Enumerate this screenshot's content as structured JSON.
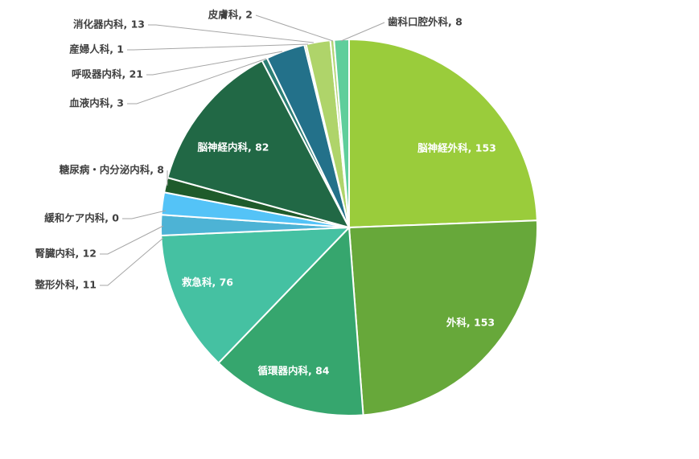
{
  "chart_data": {
    "type": "pie",
    "categories": [
      "脳神経外科",
      "外科",
      "循環器内科",
      "救急科",
      "整形外科",
      "腎臓内科",
      "緩和ケア内科",
      "糖尿病・内分泌内科",
      "脳神経内科",
      "血液内科",
      "呼吸器内科",
      "産婦人科",
      "消化器内科",
      "皮膚科",
      "歯科口腔外科"
    ],
    "values": [
      153,
      153,
      84,
      76,
      11,
      12,
      0,
      8,
      82,
      3,
      21,
      1,
      13,
      2,
      8
    ],
    "labels": [
      "脳神経外科, 153",
      "外科, 153",
      "循環器内科, 84",
      "救急科, 76",
      "整形外科, 11",
      "腎臓内科, 12",
      "緩和ケア内科, 0",
      "糖尿病・内分泌内科, 8",
      "脳神経内科, 82",
      "血液内科, 3",
      "呼吸器内科, 21",
      "産婦人科, 1",
      "消化器内科, 13",
      "皮膚科, 2",
      "歯科口腔外科, 8"
    ],
    "colors": [
      "#9acc3b",
      "#67a83a",
      "#36a66e",
      "#45c1a2",
      "#4db3d5",
      "#54c3f7",
      "#2d6a3a",
      "#1f5b2b",
      "#216845",
      "#2b7e74",
      "#23718a",
      "#8ab85a",
      "#afd46a",
      "#b2d676",
      "#5fce9b"
    ],
    "start_angle_deg": 0,
    "direction": "clockwise"
  }
}
